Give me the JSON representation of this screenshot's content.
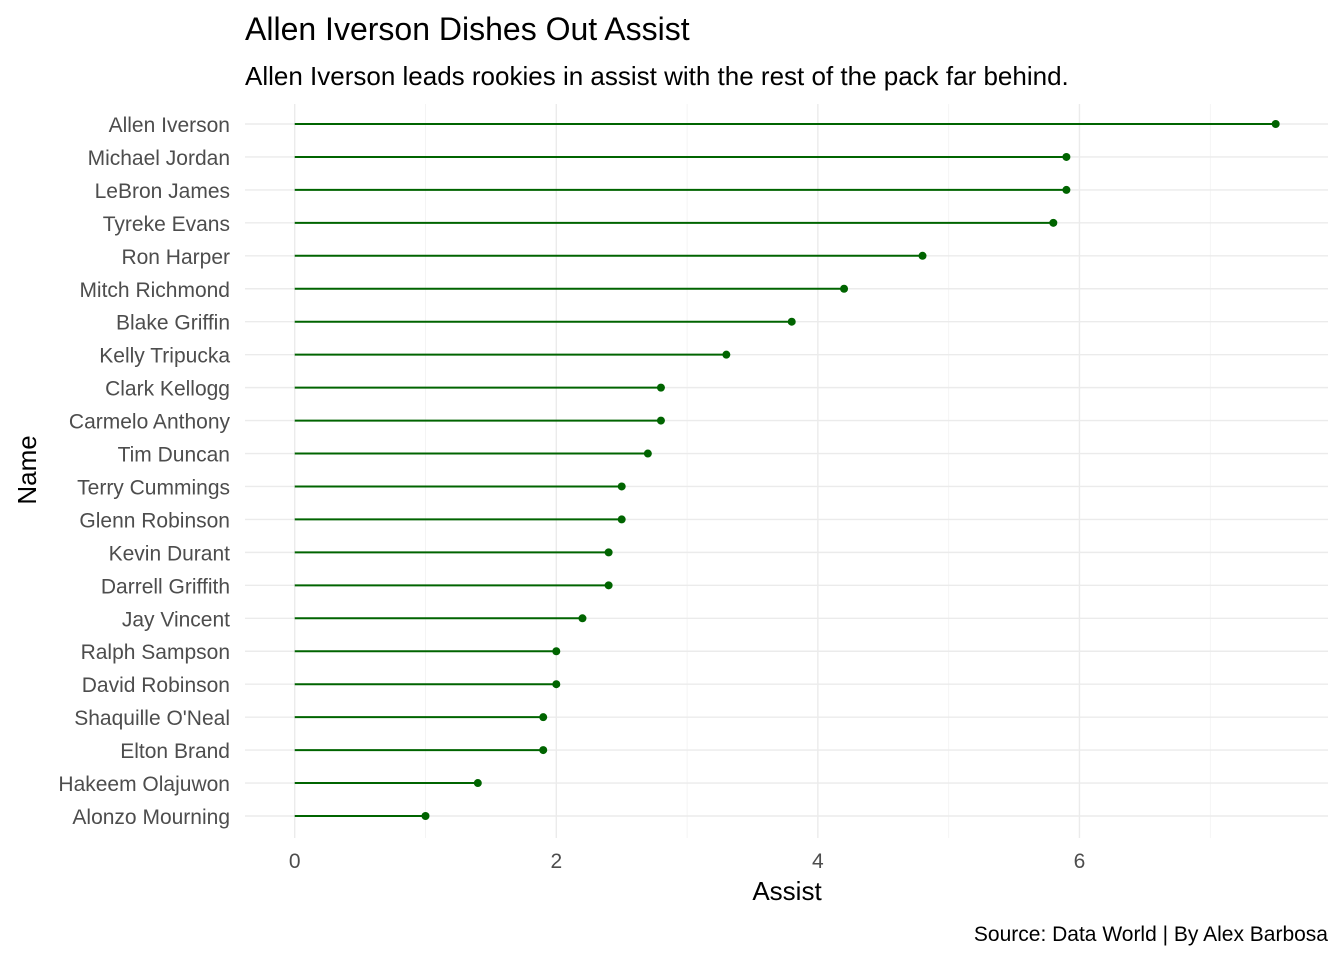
{
  "chart_data": {
    "type": "lollipop",
    "title": "Allen Iverson Dishes Out Assist",
    "subtitle": "Allen Iverson leads rookies in assist with the rest of the pack far behind.",
    "xlabel": "Assist",
    "ylabel": "Name",
    "caption": "Source: Data World | By Alex Barbosa",
    "color": "#006400",
    "xlim": [
      -0.38,
      7.9
    ],
    "xticks": [
      0,
      2,
      4,
      6
    ],
    "grid": true,
    "categories": [
      "Allen Iverson",
      "Michael Jordan",
      "LeBron James",
      "Tyreke Evans",
      "Ron Harper",
      "Mitch Richmond",
      "Blake Griffin",
      "Kelly Tripucka",
      "Clark Kellogg",
      "Carmelo Anthony",
      "Tim Duncan",
      "Terry Cummings",
      "Glenn Robinson",
      "Kevin Durant",
      "Darrell Griffith",
      "Jay Vincent",
      "Ralph Sampson",
      "David Robinson",
      "Shaquille O'Neal",
      "Elton Brand",
      "Hakeem Olajuwon",
      "Alonzo Mourning"
    ],
    "values": [
      7.5,
      5.9,
      5.9,
      5.8,
      4.8,
      4.2,
      3.8,
      3.3,
      2.8,
      2.8,
      2.7,
      2.5,
      2.5,
      2.4,
      2.4,
      2.2,
      2.0,
      2.0,
      1.9,
      1.9,
      1.4,
      1.0
    ]
  }
}
